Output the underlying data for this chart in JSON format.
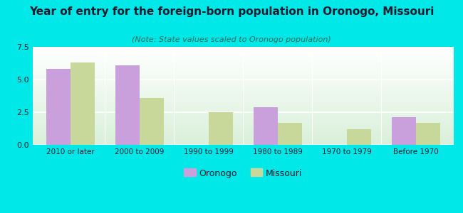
{
  "title": "Year of entry for the foreign-born population in Oronogo, Missouri",
  "subtitle": "(Note: State values scaled to Oronogo population)",
  "categories": [
    "2010 or later",
    "2000 to 2009",
    "1990 to 1999",
    "1980 to 1989",
    "1970 to 1979",
    "Before 1970"
  ],
  "oronogo_values": [
    5.8,
    6.1,
    0,
    2.9,
    0,
    2.1
  ],
  "missouri_values": [
    6.3,
    3.6,
    2.5,
    1.7,
    1.2,
    1.7
  ],
  "oronogo_color": "#c9a0dc",
  "missouri_color": "#c8d89a",
  "ylim": [
    0,
    7.5
  ],
  "yticks": [
    0,
    2.5,
    5,
    7.5
  ],
  "background_color": "#00e8e8",
  "title_fontsize": 11,
  "subtitle_fontsize": 8,
  "bar_width": 0.35,
  "legend_labels": [
    "Oronogo",
    "Missouri"
  ],
  "text_color": "#1a1a2e"
}
